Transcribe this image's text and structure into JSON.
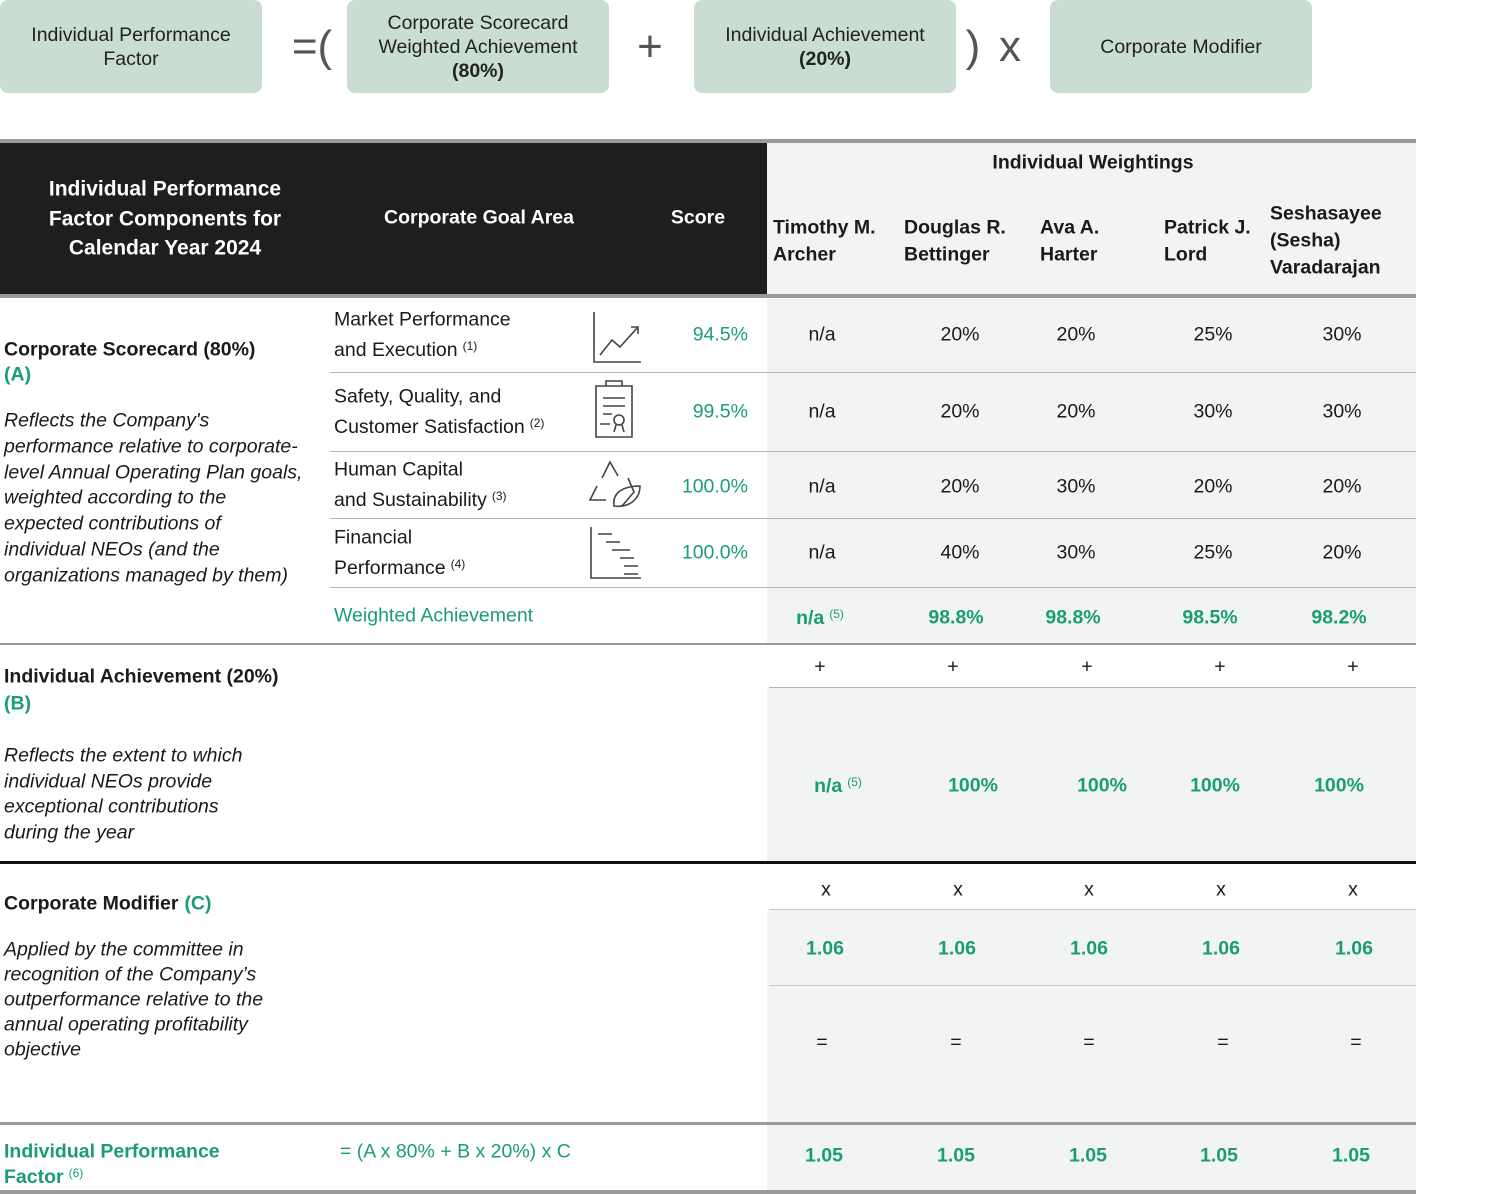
{
  "formula": {
    "result": [
      "Individual Performance",
      "Factor"
    ],
    "open": "=(",
    "scorecard": {
      "lines": [
        "Corporate Scorecard",
        "Weighted Achievement"
      ],
      "weight": "(80%)"
    },
    "plus": "+",
    "individual": {
      "lines": [
        "Individual Achievement"
      ],
      "weight": "(20%)"
    },
    "close": ")",
    "times": "x",
    "modifier": [
      "Corporate Modifier"
    ]
  },
  "table": {
    "header": {
      "title": [
        "Individual Performance",
        "Factor Components for",
        "Calendar Year 2024"
      ],
      "goal_area": "Corporate Goal Area",
      "score": "Score",
      "weightings": "Individual Weightings",
      "neos": [
        [
          "Timothy M.",
          "Archer"
        ],
        [
          "Douglas R.",
          "Bettinger"
        ],
        [
          "Ava A.",
          "Harter"
        ],
        [
          "Patrick J.",
          "Lord"
        ],
        [
          "Seshasayee",
          "(Sesha)",
          "Varadarajan"
        ]
      ]
    },
    "scorecard": {
      "label": "Corporate Scorecard (80%)",
      "tag": "(A)",
      "description": [
        "Reflects the Company's",
        "performance relative to corporate-",
        "level Annual Operating Plan goals,",
        "weighted according to the",
        "expected contributions of",
        "individual NEOs (and the",
        "organizations managed by them)"
      ],
      "goals": [
        {
          "name": [
            "Market Performance",
            "and Execution"
          ],
          "note": "(1)",
          "score": "94.5%",
          "weightings": [
            "n/a",
            "20%",
            "20%",
            "25%",
            "30%"
          ]
        },
        {
          "name": [
            "Safety, Quality, and",
            "Customer Satisfaction"
          ],
          "note": "(2)",
          "score": "99.5%",
          "weightings": [
            "n/a",
            "20%",
            "20%",
            "30%",
            "30%"
          ]
        },
        {
          "name": [
            "Human Capital",
            "and Sustainability"
          ],
          "note": "(3)",
          "score": "100.0%",
          "weightings": [
            "n/a",
            "20%",
            "30%",
            "20%",
            "20%"
          ]
        },
        {
          "name": [
            "Financial",
            "Performance"
          ],
          "note": "(4)",
          "score": "100.0%",
          "weightings": [
            "n/a",
            "40%",
            "30%",
            "25%",
            "20%"
          ]
        }
      ],
      "weighted": {
        "label": "Weighted Achievement",
        "values": [
          "n/a",
          "98.8%",
          "98.8%",
          "98.5%",
          "98.2%"
        ],
        "note": "(5)"
      }
    },
    "individual": {
      "label": "Individual Achievement (20%)",
      "tag": "(B)",
      "description": [
        "Reflects the extent to which",
        "individual NEOs provide",
        "exceptional contributions",
        "during the year"
      ],
      "operators": [
        "+",
        "+",
        "+",
        "+",
        "+"
      ],
      "values": [
        "n/a",
        "100%",
        "100%",
        "100%",
        "100%"
      ],
      "note": "(5)"
    },
    "modifier": {
      "label": "Corporate Modifier",
      "tag": "(C)",
      "description": [
        "Applied by the committee in",
        "recognition of the Company’s",
        "outperformance relative to the",
        "annual operating profitability",
        "objective"
      ],
      "operators": [
        "x",
        "x",
        "x",
        "x",
        "x"
      ],
      "values": [
        "1.06",
        "1.06",
        "1.06",
        "1.06",
        "1.06"
      ],
      "equals": [
        "=",
        "=",
        "=",
        "=",
        "="
      ]
    },
    "factor": {
      "label": [
        "Individual Performance",
        "Factor"
      ],
      "note": "(6)",
      "formula": "= (A x 80% + B x 20%) x C",
      "values": [
        "1.05",
        "1.05",
        "1.05",
        "1.05",
        "1.05"
      ]
    }
  }
}
